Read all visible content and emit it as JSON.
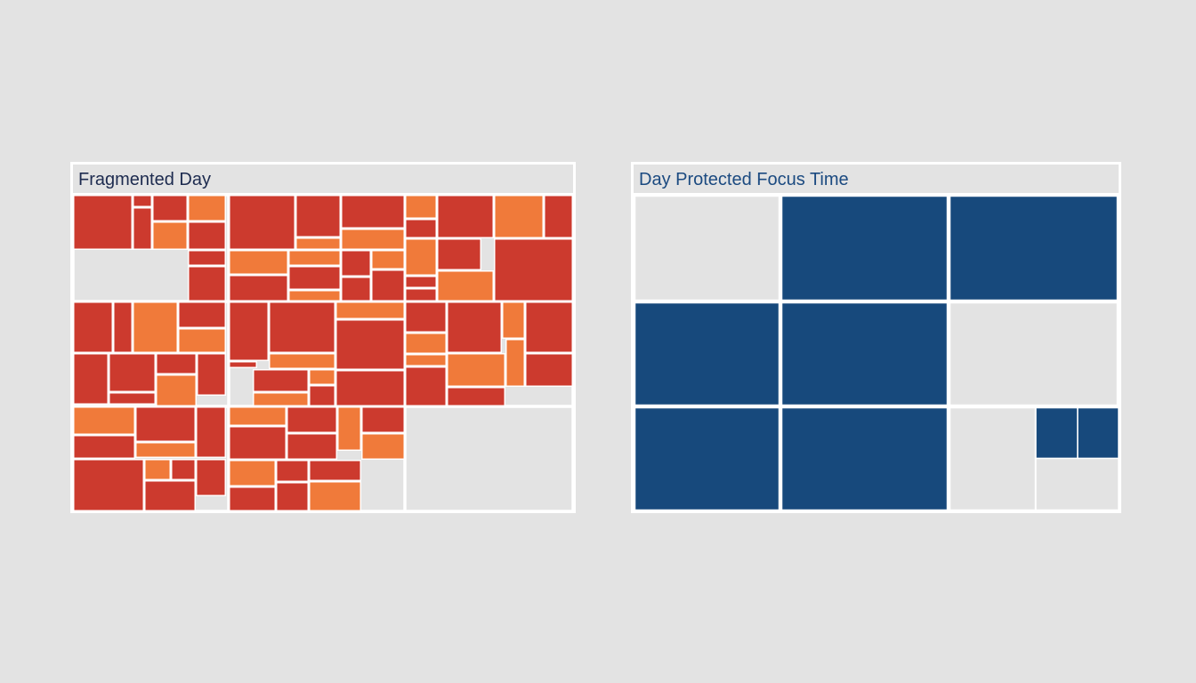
{
  "colors": {
    "background": "#e3e3e3",
    "block_red": "#cc3a2e",
    "block_orange": "#f07a3a",
    "block_navy": "#17497c",
    "empty_slot": "#e3e3e3",
    "grid_line": "#ffffff"
  },
  "panels": {
    "fragmented": {
      "title": "Fragmented Day",
      "block_palette": [
        "block_red",
        "block_orange"
      ]
    },
    "focus": {
      "title": "Day Protected Focus Time",
      "block_palette": [
        "block_navy"
      ]
    }
  }
}
